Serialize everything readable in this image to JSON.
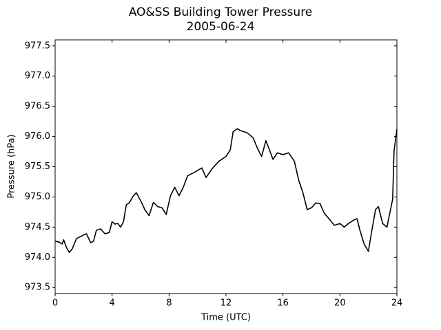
{
  "chart_data": {
    "type": "line",
    "title": "AO&SS Building Tower Pressure",
    "subtitle": "2005-06-24",
    "x_label": "Time (UTC)",
    "y_label": "Pressure (hPa)",
    "xlim": [
      0,
      24
    ],
    "xticks": [
      0,
      4,
      8,
      12,
      16,
      20,
      24
    ],
    "ylim": [
      973.4,
      977.6
    ],
    "yticks": [
      973.5,
      {
        "value": 974,
        "label": "974.0"
      },
      974.5,
      {
        "value": 975,
        "label": "975.0"
      },
      975.5,
      {
        "value": 976,
        "label": "976.0"
      },
      976.5,
      {
        "value": 977,
        "label": "977.0"
      },
      977.5
    ],
    "x": [
      0,
      0.3,
      0.5,
      0.6,
      0.8,
      1.0,
      1.2,
      1.5,
      2.0,
      2.2,
      2.5,
      2.7,
      2.9,
      3.2,
      3.5,
      3.8,
      4.0,
      4.2,
      4.4,
      4.6,
      4.8,
      5.0,
      5.2,
      5.5,
      5.7,
      6.0,
      6.3,
      6.6,
      6.9,
      7.2,
      7.5,
      7.8,
      8.1,
      8.4,
      8.7,
      9.0,
      9.3,
      9.8,
      10.3,
      10.6,
      11.0,
      11.5,
      12.0,
      12.3,
      12.5,
      12.8,
      13.0,
      13.5,
      13.9,
      14.2,
      14.5,
      14.8,
      15.0,
      15.3,
      15.6,
      16.0,
      16.4,
      16.8,
      17.1,
      17.4,
      17.7,
      18.0,
      18.3,
      18.6,
      18.9,
      19.3,
      19.6,
      20.0,
      20.3,
      20.6,
      21.0,
      21.2,
      21.4,
      21.7,
      22.0,
      22.2,
      22.5,
      22.7,
      23.0,
      23.3,
      23.5,
      23.7,
      23.8,
      24.0
    ],
    "series": [
      {
        "color": "#000000",
        "values": [
          974.27,
          974.25,
          974.22,
          974.29,
          974.16,
          974.08,
          974.14,
          974.31,
          974.37,
          974.39,
          974.24,
          974.27,
          974.45,
          974.47,
          974.39,
          974.41,
          974.59,
          974.55,
          974.56,
          974.5,
          974.59,
          974.87,
          974.9,
          975.02,
          975.07,
          974.94,
          974.79,
          974.69,
          974.91,
          974.84,
          974.82,
          974.71,
          975.02,
          975.16,
          975.02,
          975.16,
          975.35,
          975.41,
          975.48,
          975.32,
          975.46,
          975.59,
          975.67,
          975.78,
          976.08,
          976.13,
          976.1,
          976.06,
          975.98,
          975.81,
          975.67,
          975.93,
          975.81,
          975.62,
          975.73,
          975.7,
          975.73,
          975.59,
          975.28,
          975.07,
          974.79,
          974.82,
          974.9,
          974.89,
          974.73,
          974.62,
          974.53,
          974.56,
          974.5,
          974.56,
          974.62,
          974.64,
          974.45,
          974.22,
          974.1,
          974.39,
          974.79,
          974.84,
          974.56,
          974.5,
          974.73,
          974.96,
          975.76,
          976.12
        ]
      }
    ]
  }
}
